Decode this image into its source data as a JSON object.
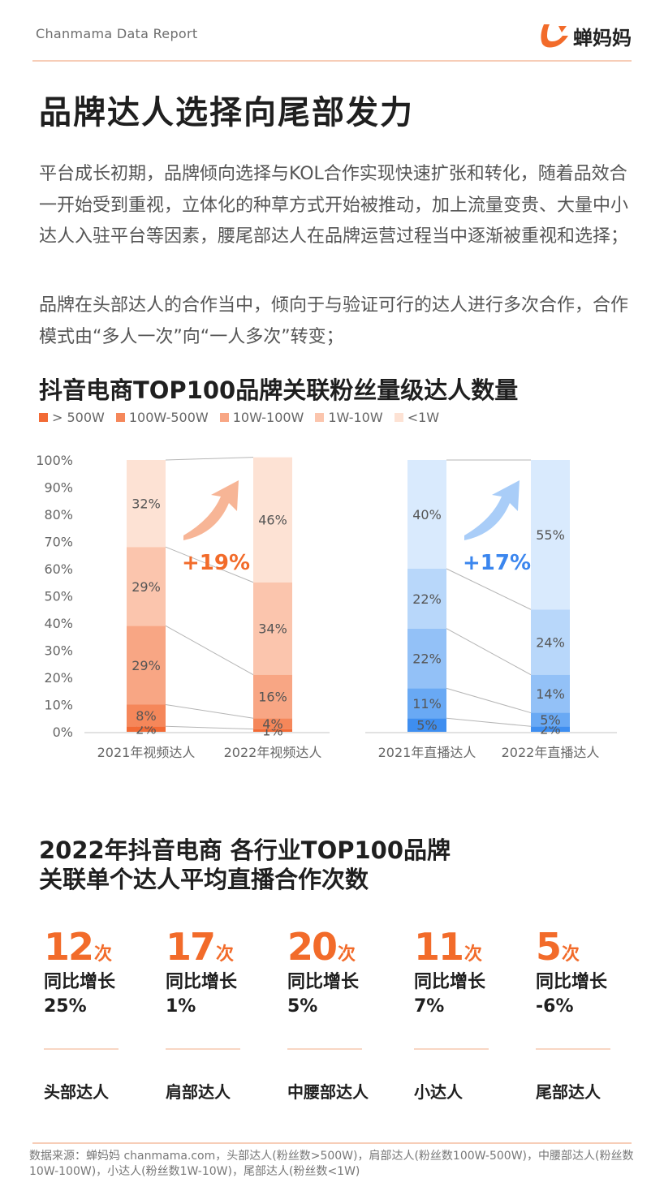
{
  "header": {
    "report_label": "Chanmama Data Report",
    "logo_text": "蝉妈妈"
  },
  "page_title": "品牌达人选择向尾部发力",
  "paragraphs": [
    "平台成长初期，品牌倾向选择与KOL合作实现快速扩张和转化，随着品效合一开始受到重视，立体化的种草方式开始被推动，加上流量变贵、大量中小达人入驻平台等因素，腰尾部达人在品牌运营过程当中逐渐被重视和选择；",
    "品牌在头部达人的合作当中，倾向于与验证可行的达人进行多次合作，合作模式由“多人一次”向“一人多次”转变；"
  ],
  "chart_data": {
    "type": "bar",
    "title": "抖音电商TOP100品牌关联粉丝量级达人数量",
    "stacked": true,
    "legend": [
      "> 500W",
      "100W-500W",
      "10W-100W",
      "1W-10W",
      "<1W"
    ],
    "legend_position": "top-left",
    "y_ticks": [
      "0%",
      "10%",
      "20%",
      "30%",
      "40%",
      "50%",
      "60%",
      "70%",
      "80%",
      "90%",
      "100%"
    ],
    "ylim": [
      0,
      100
    ],
    "groups": [
      {
        "name": "video",
        "colors": [
          "#f26a35",
          "#f5875a",
          "#f8a684",
          "#fbc5ad",
          "#fde2d4"
        ],
        "highlight": "+19%",
        "highlight_color": "#f26b2a",
        "bars": [
          {
            "category": "2021年视频达人",
            "values": [
              2,
              8,
              29,
              29,
              32
            ],
            "labels": [
              "2%",
              "8%",
              "29%",
              "29%",
              "32%"
            ]
          },
          {
            "category": "2022年视频达人",
            "values": [
              1,
              4,
              16,
              34,
              46
            ],
            "labels": [
              "1%",
              "4%",
              "16%",
              "34%",
              "46%"
            ]
          }
        ]
      },
      {
        "name": "live",
        "colors": [
          "#3e8ef0",
          "#69a9f4",
          "#93c1f7",
          "#b8d7fa",
          "#d9eafd"
        ],
        "highlight": "+17%",
        "highlight_color": "#3b86ee",
        "bars": [
          {
            "category": "2021年直播达人",
            "values": [
              5,
              11,
              22,
              22,
              40
            ],
            "labels": [
              "5%",
              "11%",
              "22%",
              "22%",
              "40%"
            ]
          },
          {
            "category": "2022年直播达人",
            "values": [
              2,
              5,
              14,
              24,
              55
            ],
            "labels": [
              "2%",
              "5%",
              "14%",
              "24%",
              "55%"
            ]
          }
        ]
      }
    ]
  },
  "section2": {
    "title_line1": "2022年抖音电商 各行业TOP100品牌",
    "title_line2": "关联单个达人平均直播合作次数",
    "unit": "次",
    "growth_label": "同比增长",
    "stats": [
      {
        "value": "12",
        "growth": "25%",
        "category": "头部达人"
      },
      {
        "value": "17",
        "growth": "1%",
        "category": "肩部达人"
      },
      {
        "value": "20",
        "growth": "5%",
        "category": "中腰部达人"
      },
      {
        "value": "11",
        "growth": "7%",
        "category": "小达人"
      },
      {
        "value": "5",
        "growth": "-6%",
        "category": "尾部达人"
      }
    ]
  },
  "footer": "数据来源：蝉妈妈 chanmama.com，头部达人(粉丝数>500W)，肩部达人(粉丝数100W-500W)，中腰部达人(粉丝数10W-100W)，小达人(粉丝数1W-10W)，尾部达人(粉丝数<1W)",
  "colors": {
    "accent": "#f26b2a",
    "blue_accent": "#3b86ee",
    "divider": "#f7cdb7"
  },
  "icons": {
    "logo": "chanmama-logo-icon",
    "trend_arrow": "up-right-arrow-icon"
  }
}
